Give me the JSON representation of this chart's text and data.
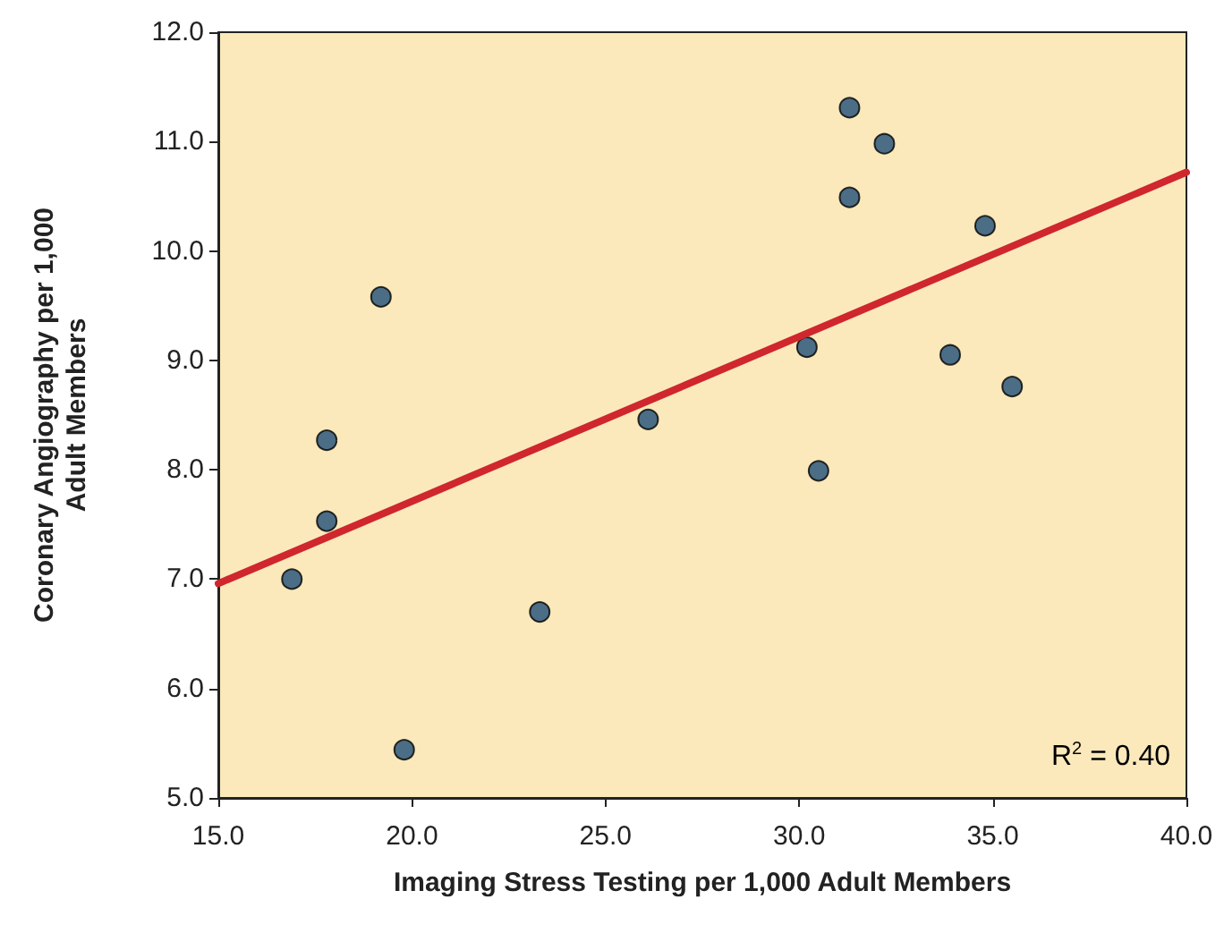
{
  "chart_data": {
    "type": "scatter",
    "xlabel": "Imaging Stress Testing per 1,000 Adult Members",
    "ylabel": "Coronary Angiography per 1,000\nAdult Members",
    "annotations": [
      "R$^{2}$ = 0.40"
    ],
    "series": [
      {
        "color": "#1f4e79",
        "marker": "circle",
        "x": [
          16.9,
          17.8,
          17.8,
          19.2,
          19.8,
          23.3,
          26.1,
          30.2,
          30.5,
          31.3,
          31.3,
          32.2,
          33.9,
          34.8,
          35.5
        ],
        "values": [
          7.0,
          8.27,
          7.53,
          9.58,
          5.44,
          6.7,
          8.46,
          9.12,
          7.99,
          11.31,
          10.49,
          10.98,
          9.05,
          10.23,
          8.76
        ]
      },
      {
        "type": "line",
        "color": "#d0262e",
        "line_style": "solid",
        "marker": "none",
        "x": [
          15,
          40
        ],
        "values": [
          6.96,
          10.72
        ]
      }
    ],
    "xlim": [
      15,
      40
    ],
    "xticks": [
      {
        "value": 15,
        "label": "15.0"
      },
      {
        "value": 20,
        "label": "20.0"
      },
      {
        "value": 25,
        "label": "25.0"
      },
      {
        "value": 30,
        "label": "30.0"
      },
      {
        "value": 35,
        "label": "35.0"
      },
      {
        "value": 40,
        "label": "40.0"
      }
    ],
    "ylim": [
      5,
      12
    ],
    "yticks": [
      {
        "value": 5,
        "label": "5.0"
      },
      {
        "value": 6,
        "label": "6.0"
      },
      {
        "value": 7,
        "label": "7.0"
      },
      {
        "value": 8,
        "label": "8.0"
      },
      {
        "value": 9,
        "label": "9.0"
      },
      {
        "value": 10,
        "label": "10.0"
      },
      {
        "value": 11,
        "label": "11.0"
      },
      {
        "value": 12,
        "label": "12.0"
      }
    ],
    "grid": false
  }
}
